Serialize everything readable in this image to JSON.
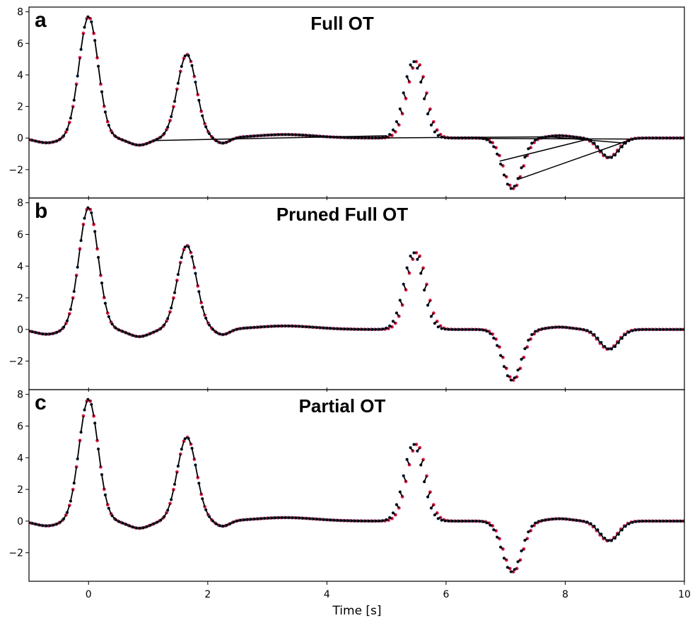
{
  "chart_data": {
    "type": "scatter",
    "xlabel": "Time [s]",
    "xlim": [
      -1,
      10
    ],
    "ylim": [
      -3.8,
      8.3
    ],
    "xticks": [
      0,
      2,
      4,
      6,
      8,
      10
    ],
    "yticks": [
      -2,
      0,
      2,
      4,
      6,
      8
    ],
    "grid": false,
    "colors": {
      "source": "#3b78b0",
      "target": "#d81b45",
      "match": "#000000"
    },
    "waveform": {
      "t_start": -1,
      "t_end": 10,
      "components": [
        {
          "center": 0.0,
          "amplitude": 7.7
        },
        {
          "center": 1.65,
          "amplitude": 5.3
        },
        {
          "center": 5.45,
          "amplitude": 4.85
        },
        {
          "center": 7.1,
          "amplitude": -3.2
        },
        {
          "center": 8.75,
          "amplitude": -1.25
        }
      ]
    },
    "panels": [
      {
        "letter": "a",
        "title": "Full OT"
      },
      {
        "letter": "b",
        "title": "Pruned Full OT"
      },
      {
        "letter": "c",
        "title": "Partial OT"
      }
    ]
  }
}
